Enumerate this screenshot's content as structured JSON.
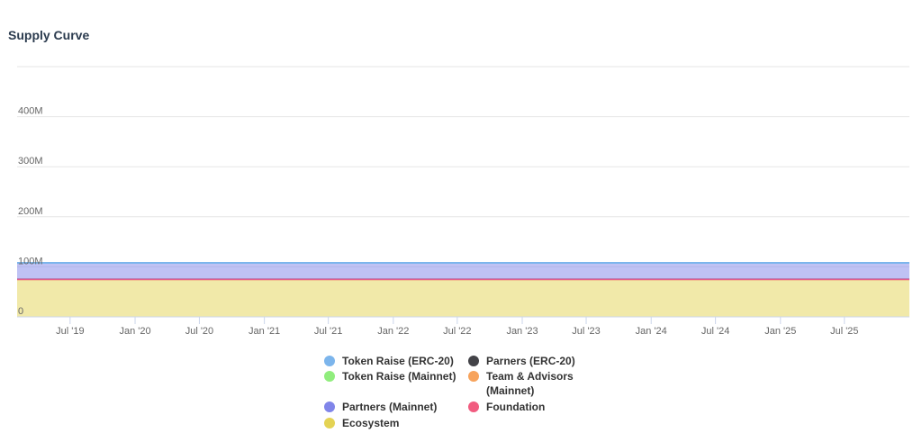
{
  "chart_data": {
    "type": "area",
    "title": "Supply Curve",
    "stacked": true,
    "step": true,
    "grid": true,
    "legend_position": "bottom",
    "ylim": [
      0,
      500
    ],
    "y_ticks": [
      {
        "value": 0,
        "label": "0"
      },
      {
        "value": 100,
        "label": "100M"
      },
      {
        "value": 200,
        "label": "200M"
      },
      {
        "value": 300,
        "label": "300M"
      },
      {
        "value": 400,
        "label": "400M"
      }
    ],
    "xlim": [
      "2019-02-01",
      "2026-01-01"
    ],
    "x_ticks": [
      {
        "date": "2019-07-01",
        "label": "Jul '19"
      },
      {
        "date": "2020-01-01",
        "label": "Jan '20"
      },
      {
        "date": "2020-07-01",
        "label": "Jul '20"
      },
      {
        "date": "2021-01-01",
        "label": "Jan '21"
      },
      {
        "date": "2021-07-01",
        "label": "Jul '21"
      },
      {
        "date": "2022-01-01",
        "label": "Jan '22"
      },
      {
        "date": "2022-07-01",
        "label": "Jul '22"
      },
      {
        "date": "2023-01-01",
        "label": "Jan '23"
      },
      {
        "date": "2023-07-01",
        "label": "Jul '23"
      },
      {
        "date": "2024-01-01",
        "label": "Jan '24"
      },
      {
        "date": "2024-07-01",
        "label": "Jul '24"
      },
      {
        "date": "2025-01-01",
        "label": "Jan '25"
      },
      {
        "date": "2025-07-01",
        "label": "Jul '25"
      }
    ],
    "x": [
      "2019-02-01",
      "2019-04-01",
      "2019-06-01",
      "2019-08-01",
      "2019-10-01",
      "2019-12-01",
      "2020-02-01",
      "2020-04-01",
      "2026-01-01"
    ],
    "series": [
      {
        "name": "Ecosystem",
        "color": "#e4d354",
        "values": [
          75,
          75,
          75,
          75,
          75,
          75,
          75,
          75,
          75
        ]
      },
      {
        "name": "Foundation",
        "color": "#f15c80",
        "values": [
          0,
          0,
          0,
          0,
          0,
          0,
          0,
          0,
          0
        ]
      },
      {
        "name": "Partners (Mainnet)",
        "color": "#8085e9",
        "values": [
          33,
          33,
          33,
          33,
          33,
          33,
          33,
          33,
          33
        ]
      },
      {
        "name": "Team & Advisors (Mainnet)",
        "color": "#f7a35c",
        "values": [
          0,
          0,
          0,
          0,
          0,
          0,
          0,
          0,
          0
        ]
      },
      {
        "name": "Token Raise (Mainnet)",
        "color": "#90ed7d",
        "values": [
          0,
          0,
          0,
          0,
          0,
          0,
          0,
          0,
          0
        ]
      },
      {
        "name": "Parners (ERC-20)",
        "color": "#434348",
        "values": [
          0,
          0,
          0,
          0,
          0,
          0,
          0,
          0,
          0
        ]
      },
      {
        "name": "Token Raise (ERC-20)",
        "color": "#7cb5ec",
        "values": [
          0,
          0,
          0,
          0,
          0,
          0,
          0,
          0,
          0
        ]
      }
    ]
  },
  "legend": [
    {
      "label": "Token Raise (ERC-20)",
      "color": "#7cb5ec"
    },
    {
      "label": "Parners (ERC-20)",
      "color": "#434348"
    },
    {
      "label": "Token Raise (Mainnet)",
      "color": "#90ed7d"
    },
    {
      "label": "Team & Advisors (Mainnet)",
      "color": "#f7a35c"
    },
    {
      "label": "Partners (Mainnet)",
      "color": "#8085e9"
    },
    {
      "label": "Foundation",
      "color": "#f15c80"
    },
    {
      "label": "Ecosystem",
      "color": "#e4d354"
    }
  ]
}
